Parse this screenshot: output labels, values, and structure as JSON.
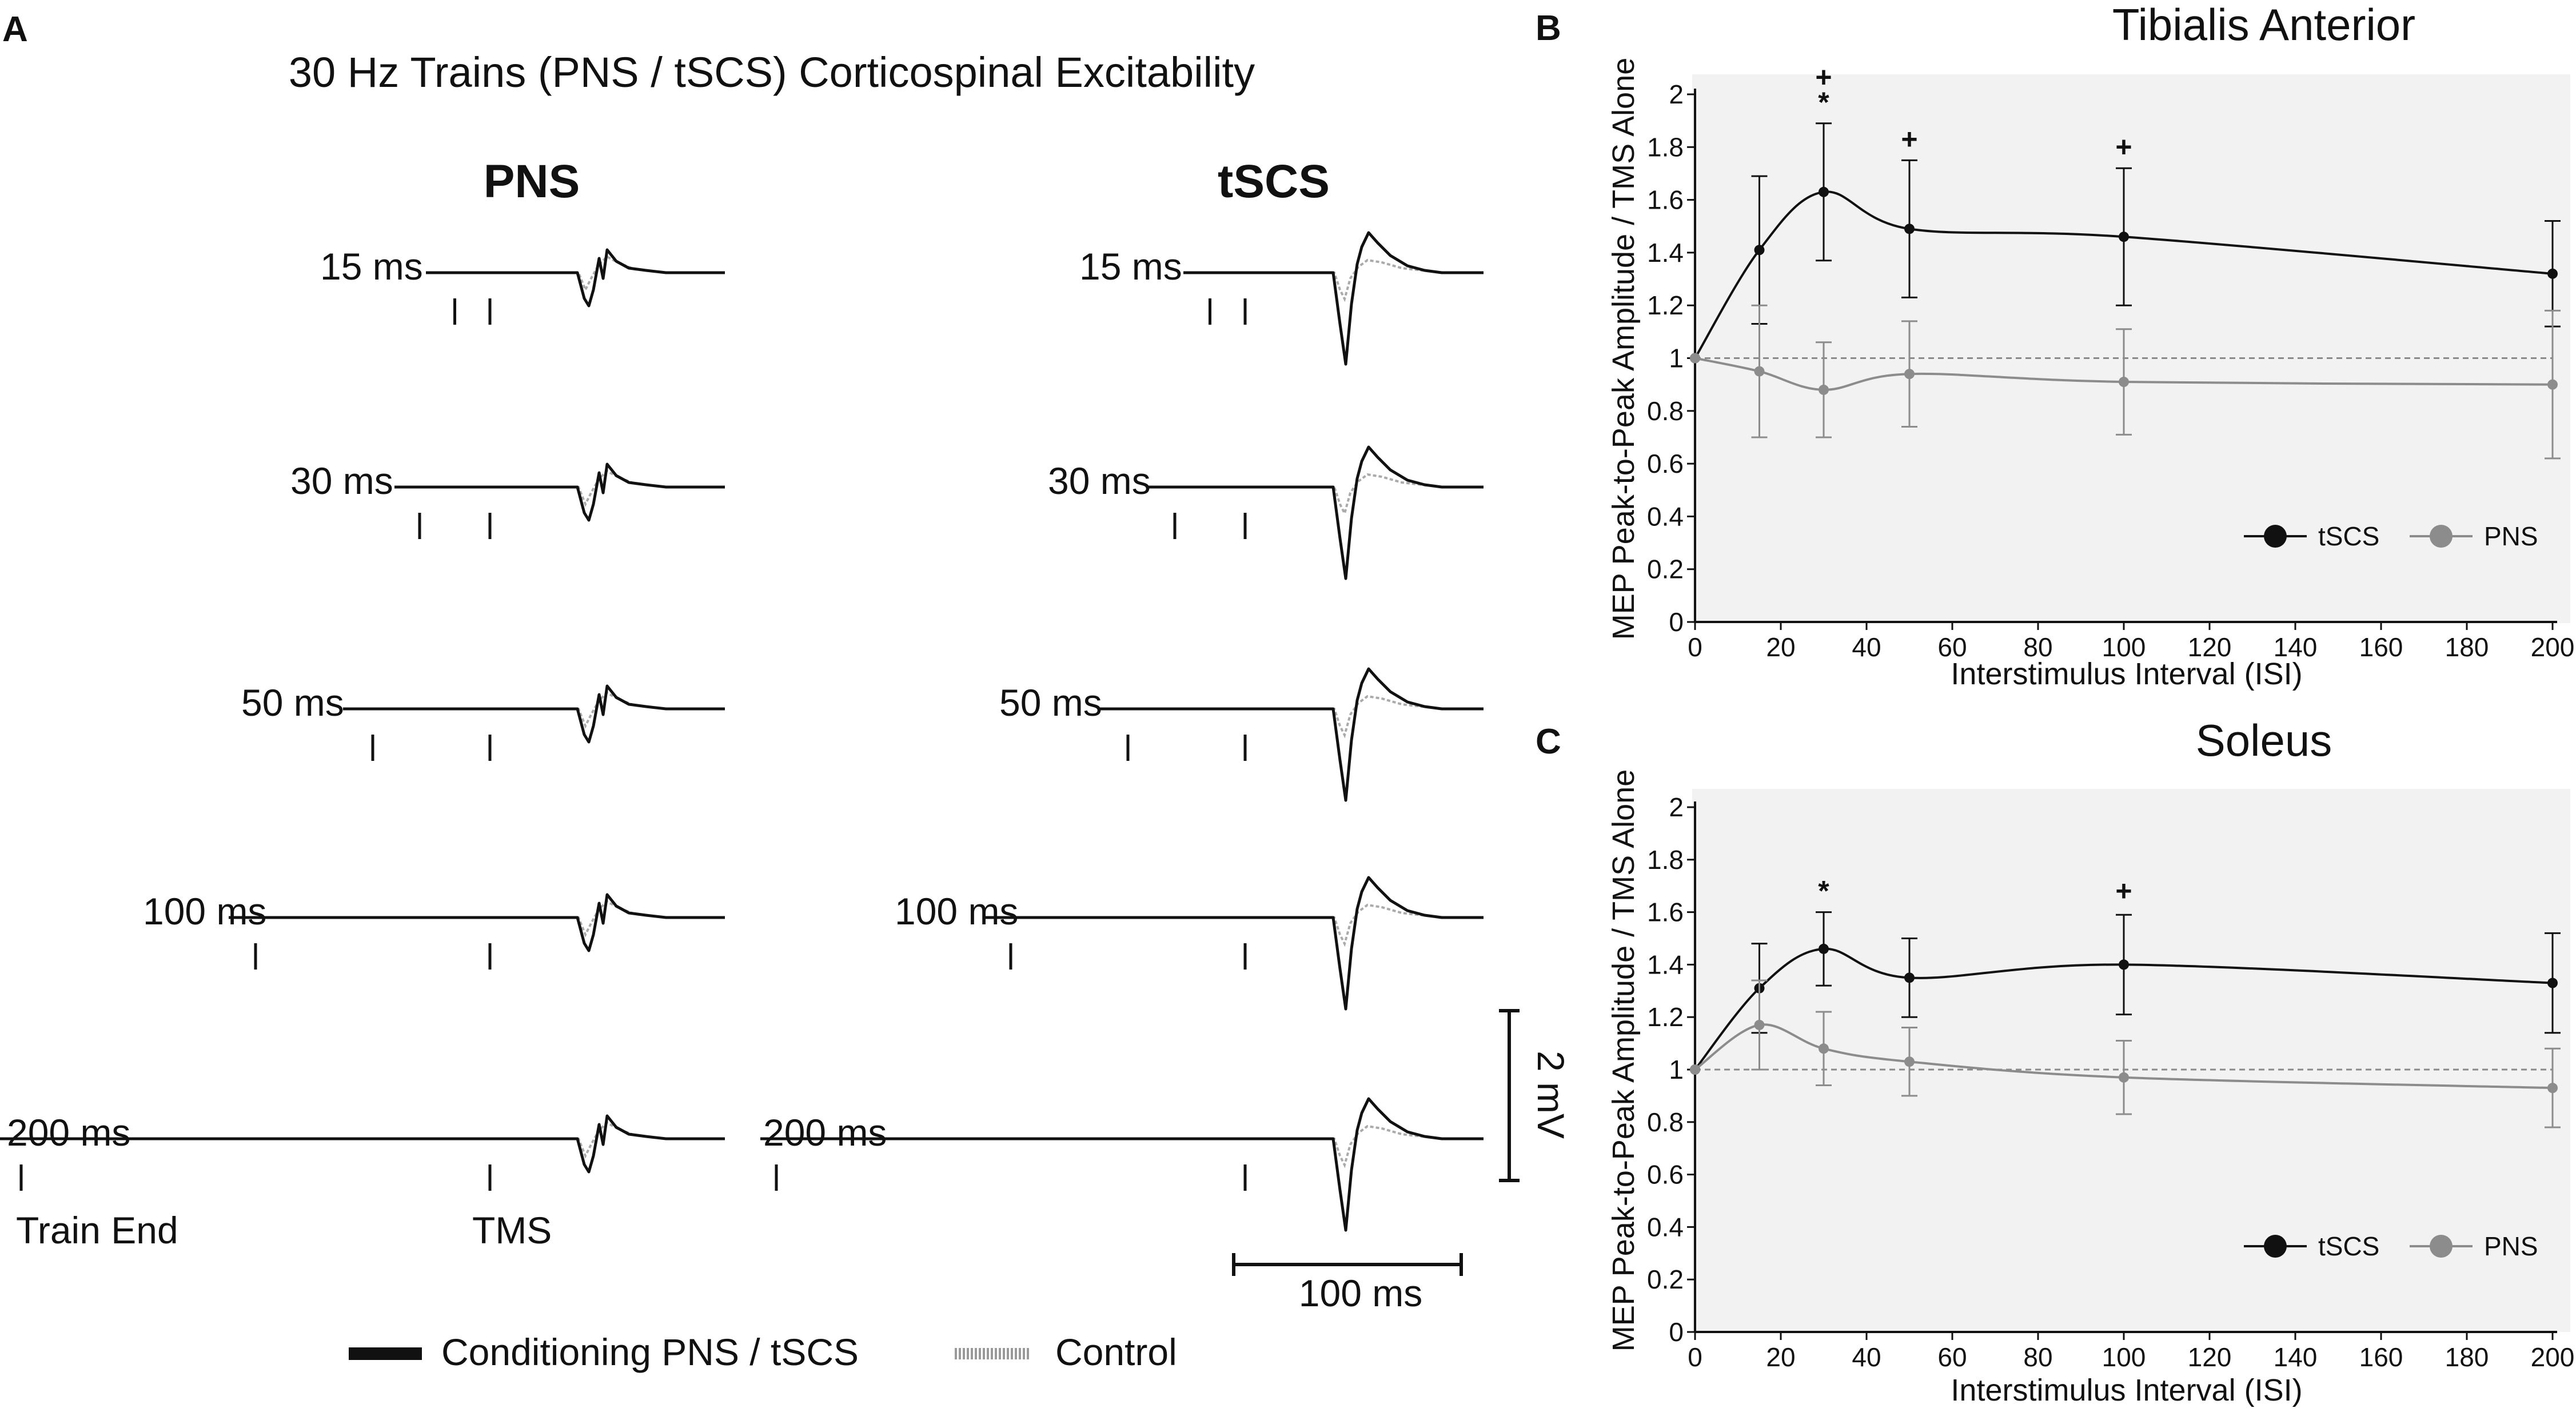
{
  "panel_a": {
    "letter": "A",
    "title": "30 Hz Trains (PNS / tSCS) Corticospinal Excitability",
    "col_headers": [
      "PNS",
      "tSCS"
    ],
    "rows": [
      {
        "label": "15 ms",
        "isi": 15
      },
      {
        "label": "30 ms",
        "isi": 30
      },
      {
        "label": "50 ms",
        "isi": 50
      },
      {
        "label": "100 ms",
        "isi": 100
      },
      {
        "label": "200 ms",
        "isi": 200
      }
    ],
    "marker_labels": {
      "train_end": "Train End",
      "tms": "TMS"
    },
    "scale_voltage": "2 mV",
    "scale_time": "100 ms",
    "legend": {
      "conditioning": "Conditioning PNS / tSCS",
      "control": "Control"
    }
  },
  "colors": {
    "tscs": "#111111",
    "pns": "#8c8c8c",
    "plot_bg": "#f2f2f2",
    "trace": "#111111",
    "control_trace": "#aaaaaa"
  },
  "chart_data": [
    {
      "panel": "B",
      "type": "line",
      "title": "Tibialis Anterior",
      "xlabel": "Interstimulus Interval (ISI)",
      "ylabel": "MEP Peak-to-Peak Amplitude / TMS Alone",
      "xlim": [
        0,
        200
      ],
      "ylim": [
        0,
        2
      ],
      "xticks": [
        0,
        20,
        40,
        60,
        80,
        100,
        120,
        140,
        160,
        180,
        200
      ],
      "yticks": [
        0,
        0.2,
        0.4,
        0.6,
        0.8,
        1,
        1.2,
        1.4,
        1.6,
        1.8,
        2
      ],
      "ytick_labels": [
        "0",
        "0.2",
        "0.4",
        "0.6",
        "0.8",
        "1",
        "1.2",
        "1.4",
        "1.6",
        "1.8",
        "2"
      ],
      "reference_line": 1,
      "legend": "bottom-right",
      "x": [
        0,
        15,
        30,
        50,
        100,
        200
      ],
      "series": [
        {
          "name": "tSCS",
          "values": [
            1,
            1.41,
            1.63,
            1.49,
            1.46,
            1.32
          ],
          "errors": [
            0,
            0.28,
            0.26,
            0.26,
            0.26,
            0.2
          ]
        },
        {
          "name": "PNS",
          "values": [
            1,
            0.95,
            0.88,
            0.94,
            0.91,
            0.9
          ],
          "errors": [
            0,
            0.25,
            0.18,
            0.2,
            0.2,
            0.28
          ]
        }
      ],
      "annotations": [
        {
          "x": 30,
          "text": "+",
          "above": 1.89,
          "row": 1
        },
        {
          "x": 30,
          "text": "*",
          "above": 1.89,
          "row": 0
        },
        {
          "x": 50,
          "text": "+",
          "above": 1.75,
          "row": 0
        },
        {
          "x": 100,
          "text": "+",
          "above": 1.72,
          "row": 0
        }
      ]
    },
    {
      "panel": "C",
      "type": "line",
      "title": "Soleus",
      "xlabel": "Interstimulus Interval (ISI)",
      "ylabel": "MEP Peak-to-Peak Amplitude / TMS Alone",
      "xlim": [
        0,
        200
      ],
      "ylim": [
        0,
        2
      ],
      "xticks": [
        0,
        20,
        40,
        60,
        80,
        100,
        120,
        140,
        160,
        180,
        200
      ],
      "yticks": [
        0,
        0.2,
        0.4,
        0.6,
        0.8,
        1,
        1.2,
        1.4,
        1.6,
        1.8,
        2
      ],
      "ytick_labels": [
        "0",
        "0.2",
        "0.4",
        "0.6",
        "0.8",
        "1",
        "1.2",
        "1.4",
        "1.6",
        "1.8",
        "2"
      ],
      "reference_line": 1,
      "legend": "bottom-right",
      "x": [
        0,
        15,
        30,
        50,
        100,
        200
      ],
      "series": [
        {
          "name": "tSCS",
          "values": [
            1,
            1.31,
            1.46,
            1.35,
            1.4,
            1.33
          ],
          "errors": [
            0,
            0.17,
            0.14,
            0.15,
            0.19,
            0.19
          ]
        },
        {
          "name": "PNS",
          "values": [
            1,
            1.17,
            1.08,
            1.03,
            0.97,
            0.93
          ],
          "errors": [
            0,
            0.17,
            0.14,
            0.13,
            0.14,
            0.15
          ]
        }
      ],
      "annotations": [
        {
          "x": 30,
          "text": "*",
          "above": 1.6,
          "row": 0
        },
        {
          "x": 100,
          "text": "+",
          "above": 1.6,
          "row": 0
        }
      ]
    }
  ]
}
